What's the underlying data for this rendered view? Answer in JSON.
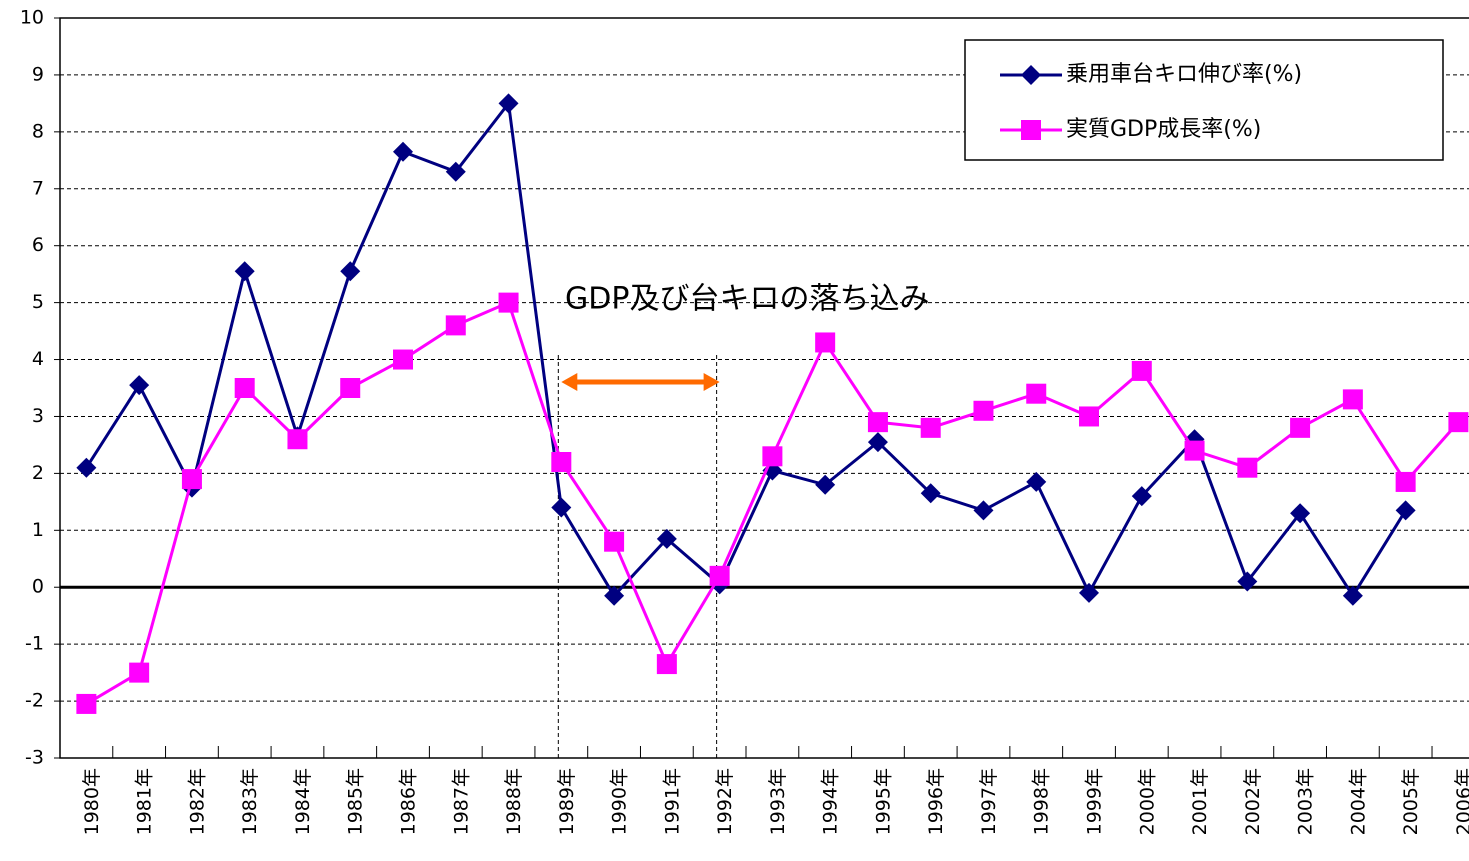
{
  "chart_data": {
    "type": "line",
    "categories": [
      "1980年",
      "1981年",
      "1982年",
      "1983年",
      "1984年",
      "1985年",
      "1986年",
      "1987年",
      "1988年",
      "1989年",
      "1990年",
      "1991年",
      "1992年",
      "1993年",
      "1994年",
      "1995年",
      "1996年",
      "1997年",
      "1998年",
      "1999年",
      "2000年",
      "2001年",
      "2002年",
      "2003年",
      "2004年",
      "2005年",
      "2006年"
    ],
    "series": [
      {
        "name": "乗用車台キロ伸び率(%)",
        "color": "#000080",
        "marker": "diamond",
        "values": [
          2.1,
          3.55,
          1.75,
          5.55,
          2.65,
          5.55,
          7.65,
          7.3,
          8.5,
          1.4,
          -0.15,
          0.85,
          0.05,
          2.05,
          1.8,
          2.55,
          1.65,
          1.35,
          1.85,
          -0.1,
          1.6,
          2.6,
          0.1,
          1.3,
          -0.15,
          1.35,
          null
        ]
      },
      {
        "name": "実質GDP成長率(%)",
        "color": "#ff00ff",
        "marker": "square",
        "values": [
          -2.05,
          -1.5,
          1.9,
          3.5,
          2.6,
          3.5,
          4.0,
          4.6,
          5.0,
          2.2,
          0.8,
          -1.35,
          0.2,
          2.3,
          4.3,
          2.9,
          2.8,
          3.1,
          3.4,
          3.0,
          3.8,
          2.4,
          2.1,
          2.8,
          3.3,
          1.85,
          2.9
        ]
      }
    ],
    "annotation": "GDP及び台キロの落ち込み",
    "annotation_color": "#e0500a",
    "ylim": [
      -3,
      10
    ],
    "yticks": [
      -3,
      -2,
      -1,
      0,
      1,
      2,
      3,
      4,
      5,
      6,
      7,
      8,
      9,
      10
    ],
    "negative_tick_color": "#ff0000",
    "grid": true,
    "legend": "top-right"
  }
}
